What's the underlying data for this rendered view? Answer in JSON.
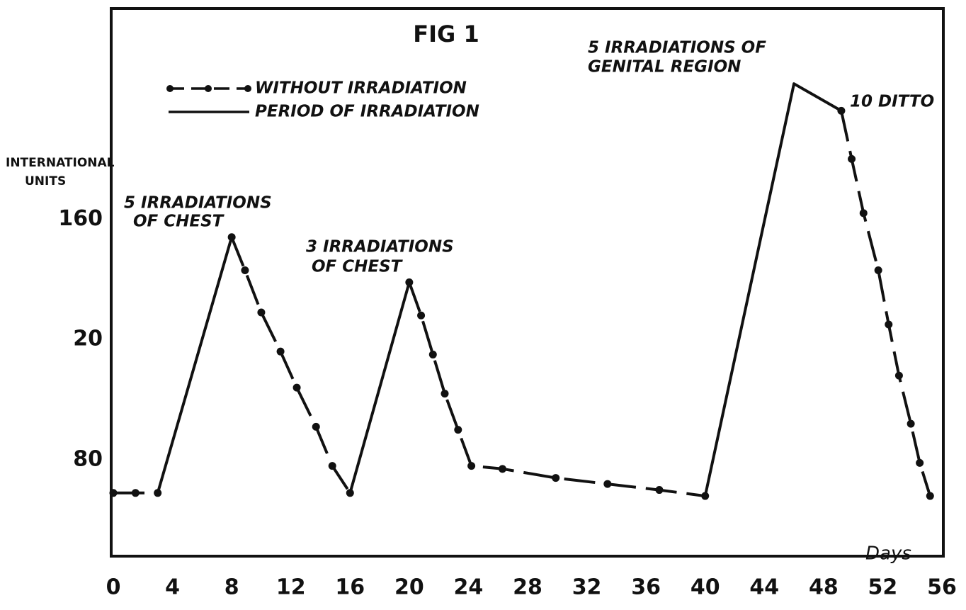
{
  "chart_data": {
    "type": "line",
    "title": "FIG 1",
    "ylabel": [
      "INTERNATIONAL",
      "UNITS"
    ],
    "xlabel": "Days",
    "xlim": [
      0,
      56
    ],
    "xticks": [
      0,
      4,
      8,
      12,
      16,
      20,
      24,
      28,
      32,
      36,
      40,
      44,
      48,
      52,
      56
    ],
    "ylim": [
      48,
      230
    ],
    "yticks": [
      160,
      {
        "value": 120,
        "label": "20"
      },
      80
    ],
    "legend": "upper-left",
    "series": [
      {
        "name": "WITHOUT IRRADIATION",
        "color": "#111111",
        "style": "dash-dot",
        "x": [
          0,
          1.5,
          3,
          null,
          8,
          8.9,
          10,
          11.3,
          12.4,
          13.7,
          14.8,
          16,
          null,
          20,
          20.8,
          21.6,
          22.4,
          23.3,
          24.2,
          26.3,
          29.9,
          33.4,
          36.9,
          40,
          null,
          49.2,
          49.9,
          50.7,
          51.7,
          52.4,
          53.1,
          53.9,
          54.5,
          55.2
        ],
        "values": [
          69,
          69,
          69,
          null,
          154,
          143,
          129,
          116,
          104,
          91,
          78,
          69,
          null,
          139,
          128,
          115,
          102,
          90,
          78,
          77,
          74,
          72,
          70,
          68,
          null,
          196,
          180,
          162,
          143,
          125,
          108,
          92,
          79,
          68
        ]
      },
      {
        "name": "PERIOD OF IRRADIATION",
        "color": "#111111",
        "style": "solid",
        "x": [
          3,
          8,
          null,
          16,
          20,
          null,
          40,
          46,
          49.2
        ],
        "values": [
          69,
          154,
          null,
          69,
          139,
          null,
          68,
          205,
          196
        ]
      }
    ],
    "annotations": [
      {
        "lines": [
          "5 IRRADIATIONS",
          "OF CHEST"
        ]
      },
      {
        "lines": [
          "3 IRRADIATIONS",
          "OF CHEST"
        ]
      },
      {
        "lines": [
          "5 IRRADIATIONS OF",
          "GENITAL REGION"
        ]
      },
      {
        "lines": [
          "10 DITTO"
        ]
      }
    ]
  }
}
